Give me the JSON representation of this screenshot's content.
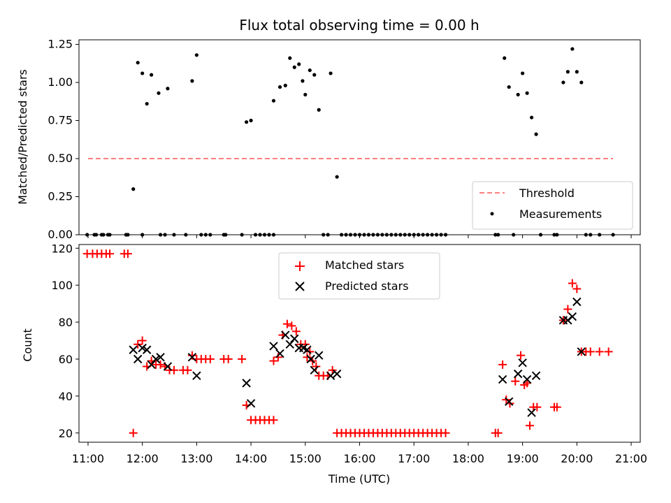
{
  "chart_data": [
    {
      "type": "scatter",
      "title": "Flux total observing time = 0.00 h",
      "xlabel": "",
      "ylabel": "Matched/Predicted stars",
      "ylim": [
        0,
        1.28
      ],
      "xlim": [
        "10:50",
        "21:10"
      ],
      "yticks": [
        "0.00",
        "0.25",
        "0.50",
        "0.75",
        "1.00",
        "1.25"
      ],
      "legend": {
        "placement": "lower-right",
        "entries": [
          "Threshold",
          "Measurements"
        ]
      },
      "threshold": {
        "name": "Threshold",
        "value": 0.5,
        "x_start": "11:00",
        "x_end": "20:40",
        "color": "#ff7f7f",
        "style": "dashed"
      },
      "series": [
        {
          "name": "Measurements",
          "color": "#000000",
          "marker": "dot",
          "points": [
            [
              "10:59",
              0
            ],
            [
              "11:07",
              0
            ],
            [
              "11:09",
              0
            ],
            [
              "11:15",
              0
            ],
            [
              "11:17",
              0
            ],
            [
              "11:22",
              0
            ],
            [
              "11:24",
              0
            ],
            [
              "11:42",
              0
            ],
            [
              "11:44",
              0
            ],
            [
              "11:50",
              0.3
            ],
            [
              "11:55",
              1.13
            ],
            [
              "12:00",
              0
            ],
            [
              "12:00",
              1.06
            ],
            [
              "12:05",
              0.86
            ],
            [
              "12:10",
              1.05
            ],
            [
              "12:18",
              0.93
            ],
            [
              "12:20",
              0
            ],
            [
              "12:25",
              0
            ],
            [
              "12:28",
              0.96
            ],
            [
              "12:35",
              0
            ],
            [
              "12:48",
              0
            ],
            [
              "12:55",
              1.01
            ],
            [
              "13:00",
              1.18
            ],
            [
              "13:05",
              0
            ],
            [
              "13:10",
              0
            ],
            [
              "13:15",
              0
            ],
            [
              "13:30",
              0
            ],
            [
              "13:32",
              0
            ],
            [
              "13:50",
              0
            ],
            [
              "13:55",
              0.74
            ],
            [
              "14:00",
              0.75
            ],
            [
              "14:05",
              0
            ],
            [
              "14:10",
              0
            ],
            [
              "14:15",
              0
            ],
            [
              "14:20",
              0
            ],
            [
              "14:25",
              0
            ],
            [
              "14:25",
              0.88
            ],
            [
              "14:32",
              0.97
            ],
            [
              "14:38",
              0.98
            ],
            [
              "14:43",
              1.16
            ],
            [
              "14:48",
              1.1
            ],
            [
              "14:53",
              1.12
            ],
            [
              "14:57",
              1.01
            ],
            [
              "15:00",
              0.92
            ],
            [
              "15:05",
              1.08
            ],
            [
              "15:10",
              1.05
            ],
            [
              "15:15",
              0.82
            ],
            [
              "15:20",
              0
            ],
            [
              "15:25",
              0
            ],
            [
              "15:28",
              1.06
            ],
            [
              "15:35",
              0.38
            ],
            [
              "15:40",
              0
            ],
            [
              "15:45",
              0
            ],
            [
              "15:50",
              0
            ],
            [
              "15:55",
              0
            ],
            [
              "16:00",
              0
            ],
            [
              "16:05",
              0
            ],
            [
              "16:10",
              0
            ],
            [
              "16:15",
              0
            ],
            [
              "16:20",
              0
            ],
            [
              "16:25",
              0
            ],
            [
              "16:30",
              0
            ],
            [
              "16:35",
              0
            ],
            [
              "16:40",
              0
            ],
            [
              "16:45",
              0
            ],
            [
              "16:50",
              0
            ],
            [
              "16:55",
              0
            ],
            [
              "17:00",
              0
            ],
            [
              "17:05",
              0
            ],
            [
              "17:10",
              0
            ],
            [
              "17:15",
              0
            ],
            [
              "17:20",
              0
            ],
            [
              "17:25",
              0
            ],
            [
              "17:30",
              0
            ],
            [
              "17:35",
              0
            ],
            [
              "18:30",
              0
            ],
            [
              "18:33",
              0
            ],
            [
              "18:40",
              1.16
            ],
            [
              "18:45",
              0.97
            ],
            [
              "18:50",
              0
            ],
            [
              "18:55",
              0.92
            ],
            [
              "19:00",
              1.06
            ],
            [
              "19:05",
              0.93
            ],
            [
              "19:10",
              0.77
            ],
            [
              "19:15",
              0.66
            ],
            [
              "19:20",
              0
            ],
            [
              "19:35",
              0
            ],
            [
              "19:38",
              0
            ],
            [
              "19:45",
              1.0
            ],
            [
              "19:50",
              1.07
            ],
            [
              "19:55",
              1.22
            ],
            [
              "20:00",
              1.07
            ],
            [
              "20:05",
              1.0
            ],
            [
              "20:10",
              0
            ],
            [
              "20:15",
              0
            ],
            [
              "20:25",
              0
            ],
            [
              "20:40",
              0
            ]
          ]
        }
      ]
    },
    {
      "type": "scatter",
      "title": "",
      "xlabel": "Time (UTC)",
      "ylabel": "Count",
      "ylim": [
        15,
        122
      ],
      "xlim": [
        "10:50",
        "21:10"
      ],
      "yticks": [
        "20",
        "40",
        "60",
        "80",
        "100",
        "120"
      ],
      "xticks": [
        "11:00",
        "12:00",
        "13:00",
        "14:00",
        "15:00",
        "16:00",
        "17:00",
        "18:00",
        "19:00",
        "20:00",
        "21:00"
      ],
      "legend": {
        "placement": "top-center",
        "entries": [
          "Matched stars",
          "Predicted stars"
        ]
      },
      "series": [
        {
          "name": "Matched stars",
          "color": "#ff0000",
          "marker": "plus",
          "points": [
            [
              "10:59",
              117
            ],
            [
              "11:05",
              117
            ],
            [
              "11:10",
              117
            ],
            [
              "11:15",
              117
            ],
            [
              "11:20",
              117
            ],
            [
              "11:24",
              117
            ],
            [
              "11:40",
              117
            ],
            [
              "11:44",
              117
            ],
            [
              "11:50",
              20
            ],
            [
              "11:55",
              68
            ],
            [
              "12:00",
              70
            ],
            [
              "12:05",
              56
            ],
            [
              "12:10",
              59
            ],
            [
              "12:15",
              57
            ],
            [
              "12:20",
              57
            ],
            [
              "12:25",
              56
            ],
            [
              "12:30",
              54
            ],
            [
              "12:35",
              54
            ],
            [
              "12:45",
              54
            ],
            [
              "12:50",
              54
            ],
            [
              "12:55",
              62
            ],
            [
              "13:00",
              60
            ],
            [
              "13:05",
              60
            ],
            [
              "13:10",
              60
            ],
            [
              "13:15",
              60
            ],
            [
              "13:30",
              60
            ],
            [
              "13:35",
              60
            ],
            [
              "13:50",
              60
            ],
            [
              "13:55",
              35
            ],
            [
              "14:00",
              27
            ],
            [
              "14:05",
              27
            ],
            [
              "14:10",
              27
            ],
            [
              "14:15",
              27
            ],
            [
              "14:20",
              27
            ],
            [
              "14:25",
              27
            ],
            [
              "14:25",
              59
            ],
            [
              "14:30",
              61
            ],
            [
              "14:35",
              73
            ],
            [
              "14:40",
              79
            ],
            [
              "14:45",
              78
            ],
            [
              "14:50",
              75
            ],
            [
              "14:55",
              68
            ],
            [
              "15:00",
              68
            ],
            [
              "15:02",
              61
            ],
            [
              "15:05",
              64
            ],
            [
              "15:08",
              59
            ],
            [
              "15:12",
              56
            ],
            [
              "15:15",
              51
            ],
            [
              "15:20",
              51
            ],
            [
              "15:25",
              51
            ],
            [
              "15:30",
              54
            ],
            [
              "15:35",
              20
            ],
            [
              "15:40",
              20
            ],
            [
              "15:45",
              20
            ],
            [
              "15:50",
              20
            ],
            [
              "15:55",
              20
            ],
            [
              "16:00",
              20
            ],
            [
              "16:05",
              20
            ],
            [
              "16:10",
              20
            ],
            [
              "16:15",
              20
            ],
            [
              "16:20",
              20
            ],
            [
              "16:25",
              20
            ],
            [
              "16:30",
              20
            ],
            [
              "16:35",
              20
            ],
            [
              "16:40",
              20
            ],
            [
              "16:45",
              20
            ],
            [
              "16:50",
              20
            ],
            [
              "16:55",
              20
            ],
            [
              "17:00",
              20
            ],
            [
              "17:05",
              20
            ],
            [
              "17:10",
              20
            ],
            [
              "17:15",
              20
            ],
            [
              "17:20",
              20
            ],
            [
              "17:25",
              20
            ],
            [
              "17:30",
              20
            ],
            [
              "17:35",
              20
            ],
            [
              "18:30",
              20
            ],
            [
              "18:33",
              20
            ],
            [
              "18:38",
              57
            ],
            [
              "18:42",
              38
            ],
            [
              "18:46",
              36
            ],
            [
              "18:52",
              48
            ],
            [
              "18:58",
              62
            ],
            [
              "19:02",
              46
            ],
            [
              "19:05",
              47
            ],
            [
              "19:08",
              24
            ],
            [
              "19:12",
              34
            ],
            [
              "19:16",
              34
            ],
            [
              "19:35",
              34
            ],
            [
              "19:38",
              34
            ],
            [
              "19:45",
              81
            ],
            [
              "19:50",
              87
            ],
            [
              "19:55",
              101
            ],
            [
              "20:00",
              98
            ],
            [
              "20:05",
              64
            ],
            [
              "20:10",
              64
            ],
            [
              "20:15",
              64
            ],
            [
              "20:25",
              64
            ],
            [
              "20:35",
              64
            ]
          ]
        },
        {
          "name": "Predicted stars",
          "color": "#000000",
          "marker": "x",
          "points": [
            [
              "11:50",
              65
            ],
            [
              "11:55",
              60
            ],
            [
              "12:00",
              66
            ],
            [
              "12:05",
              65
            ],
            [
              "12:10",
              57
            ],
            [
              "12:15",
              60
            ],
            [
              "12:20",
              61
            ],
            [
              "12:28",
              56
            ],
            [
              "12:55",
              61
            ],
            [
              "13:00",
              51
            ],
            [
              "13:55",
              47
            ],
            [
              "14:00",
              36
            ],
            [
              "14:25",
              67
            ],
            [
              "14:32",
              63
            ],
            [
              "14:38",
              73
            ],
            [
              "14:43",
              68
            ],
            [
              "14:48",
              71
            ],
            [
              "14:53",
              66
            ],
            [
              "14:58",
              66
            ],
            [
              "15:02",
              65
            ],
            [
              "15:06",
              60
            ],
            [
              "15:10",
              54
            ],
            [
              "15:15",
              62
            ],
            [
              "15:28",
              51
            ],
            [
              "15:35",
              52
            ],
            [
              "18:38",
              49
            ],
            [
              "18:45",
              37
            ],
            [
              "18:55",
              52
            ],
            [
              "19:00",
              58
            ],
            [
              "19:05",
              49
            ],
            [
              "19:10",
              31
            ],
            [
              "19:15",
              51
            ],
            [
              "19:45",
              81
            ],
            [
              "19:50",
              81
            ],
            [
              "19:55",
              83
            ],
            [
              "20:00",
              91
            ],
            [
              "20:05",
              64
            ]
          ]
        }
      ]
    }
  ]
}
